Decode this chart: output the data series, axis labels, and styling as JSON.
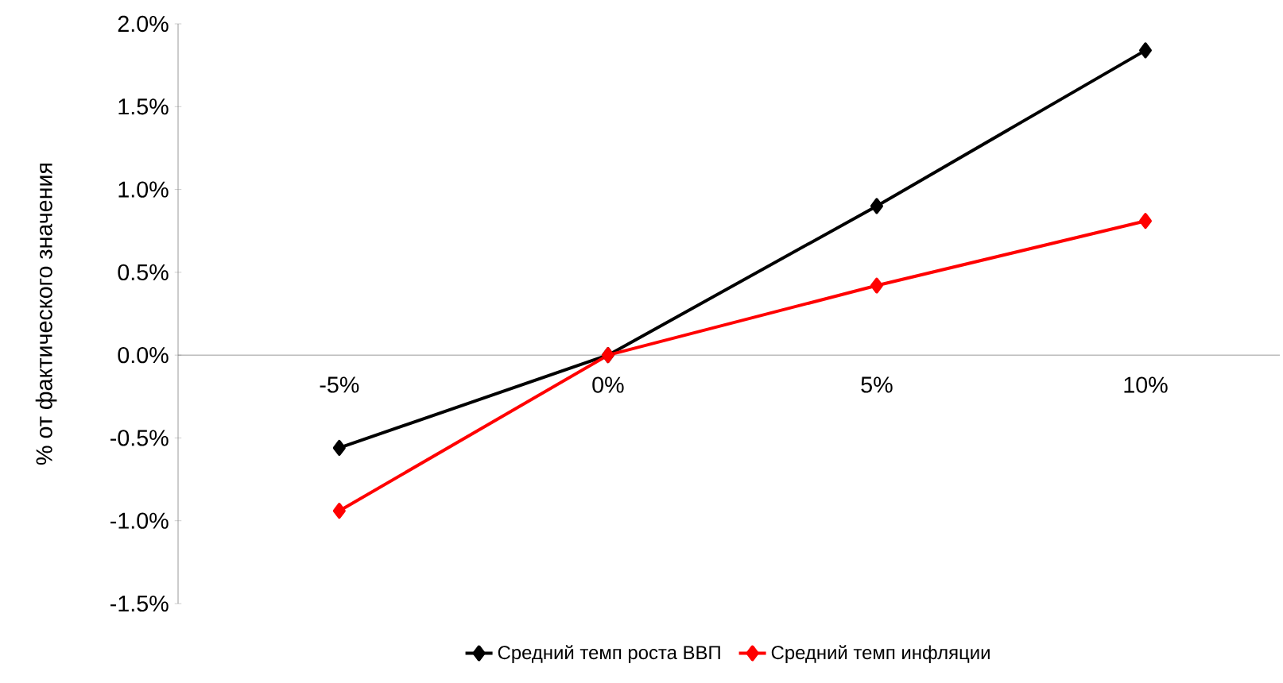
{
  "chart_data": {
    "type": "line",
    "ylabel": "% от фактического значения",
    "categories": [
      "-5%",
      "0%",
      "5%",
      "10%"
    ],
    "series": [
      {
        "name": "Средний темп роста ВВП",
        "color": "#000000",
        "values": [
          -0.56,
          0.0,
          0.9,
          1.84
        ]
      },
      {
        "name": "Средний темп инфляции",
        "color": "#ff0000",
        "values": [
          -0.94,
          0.0,
          0.42,
          0.81
        ]
      }
    ],
    "ylim": [
      -1.5,
      2.0
    ],
    "yticks": [
      {
        "value": -1.5,
        "label": "-1.5%"
      },
      {
        "value": -1.0,
        "label": "-1.0%"
      },
      {
        "value": -0.5,
        "label": "-0.5%"
      },
      {
        "value": 0.0,
        "label": "0.0%"
      },
      {
        "value": 0.5,
        "label": "0.5%"
      },
      {
        "value": 1.0,
        "label": "1.0%"
      },
      {
        "value": 1.5,
        "label": "1.5%"
      },
      {
        "value": 2.0,
        "label": "2.0%"
      }
    ],
    "marker": "diamond",
    "legend": "bottom",
    "grid": false
  }
}
